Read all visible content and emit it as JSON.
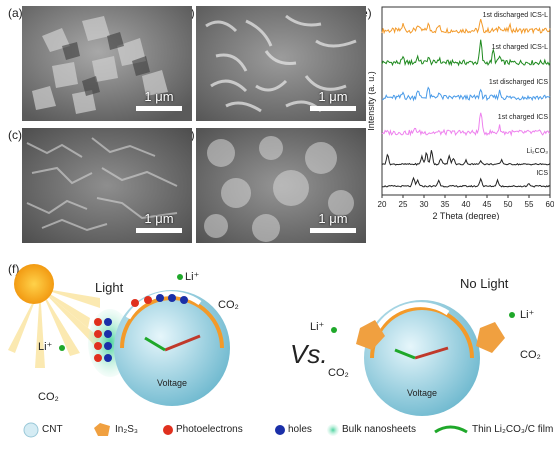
{
  "panels": {
    "a": {
      "label": "(a)",
      "scale": "1 μm"
    },
    "b": {
      "label": "(b)",
      "scale": "1 μm"
    },
    "c": {
      "label": "(c)",
      "scale": "1 μm"
    },
    "d": {
      "label": "(d)",
      "scale": "1 μm"
    },
    "e": {
      "label": "(e)"
    },
    "f": {
      "label": "(f)"
    }
  },
  "chart_data": {
    "type": "line",
    "xlabel": "2 Theta (degree)",
    "ylabel": "Intensity (a. u.)",
    "xlim": [
      20,
      60
    ],
    "xticks": [
      20,
      25,
      30,
      35,
      40,
      45,
      50,
      55,
      60
    ],
    "series": [
      {
        "name": "1st discharged ICS-L",
        "color": "#f39a2a"
      },
      {
        "name": "1st charged ICS-L",
        "color": "#1f8a1f"
      },
      {
        "name": "1st discharged ICS",
        "color": "#4a9be8"
      },
      {
        "name": "1st charged ICS",
        "color": "#ee82ee"
      },
      {
        "name": "Li₂CO₃",
        "color": "#222222"
      },
      {
        "name": "ICS",
        "color": "#222222"
      }
    ]
  },
  "schematic": {
    "left_title": "Light",
    "right_title": "No Light",
    "versus": "Vs.",
    "voltage": "Voltage",
    "li_ion": "Li⁺",
    "co2": "CO₂",
    "gauge_ticks": [
      "2.4",
      "2.8",
      "3.1",
      "3.4",
      "3.7",
      "4.0"
    ]
  },
  "legend": [
    "CNT",
    "In₂S₃",
    "Photoelectrons",
    "holes",
    "Bulk nanosheets",
    "Thin Li₂CO₃/C film"
  ]
}
